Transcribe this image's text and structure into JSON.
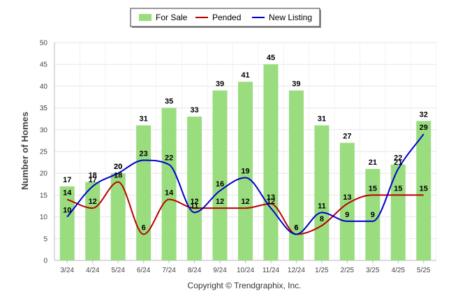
{
  "chart_data": {
    "type": "bar",
    "categories": [
      "3/24",
      "4/24",
      "5/24",
      "6/24",
      "7/24",
      "8/24",
      "9/24",
      "10/24",
      "11/24",
      "12/24",
      "1/25",
      "2/25",
      "3/25",
      "4/25",
      "5/25"
    ],
    "series": [
      {
        "name": "For Sale",
        "type": "bar",
        "color": "#99dd7f",
        "values": [
          17,
          18,
          20,
          31,
          35,
          33,
          39,
          41,
          45,
          39,
          31,
          27,
          21,
          22,
          32
        ]
      },
      {
        "name": "Pended",
        "type": "line",
        "color": "#bb0000",
        "values": [
          14,
          12,
          18,
          6,
          14,
          12,
          12,
          12,
          13,
          6,
          8,
          13,
          15,
          15,
          15
        ]
      },
      {
        "name": "New Listing",
        "type": "line",
        "color": "#0000cc",
        "values": [
          10,
          17,
          20,
          23,
          22,
          11,
          16,
          19,
          12,
          6,
          11,
          9,
          9,
          21,
          29
        ]
      }
    ],
    "ylabel": "Number of Homes",
    "xlabel": "",
    "ylim": [
      0,
      50
    ],
    "yticks": [
      0,
      5,
      10,
      15,
      20,
      25,
      30,
      35,
      40,
      45,
      50
    ],
    "grid": true,
    "legend_position": "top"
  },
  "footer": "Copyright © Trendgraphix, Inc."
}
